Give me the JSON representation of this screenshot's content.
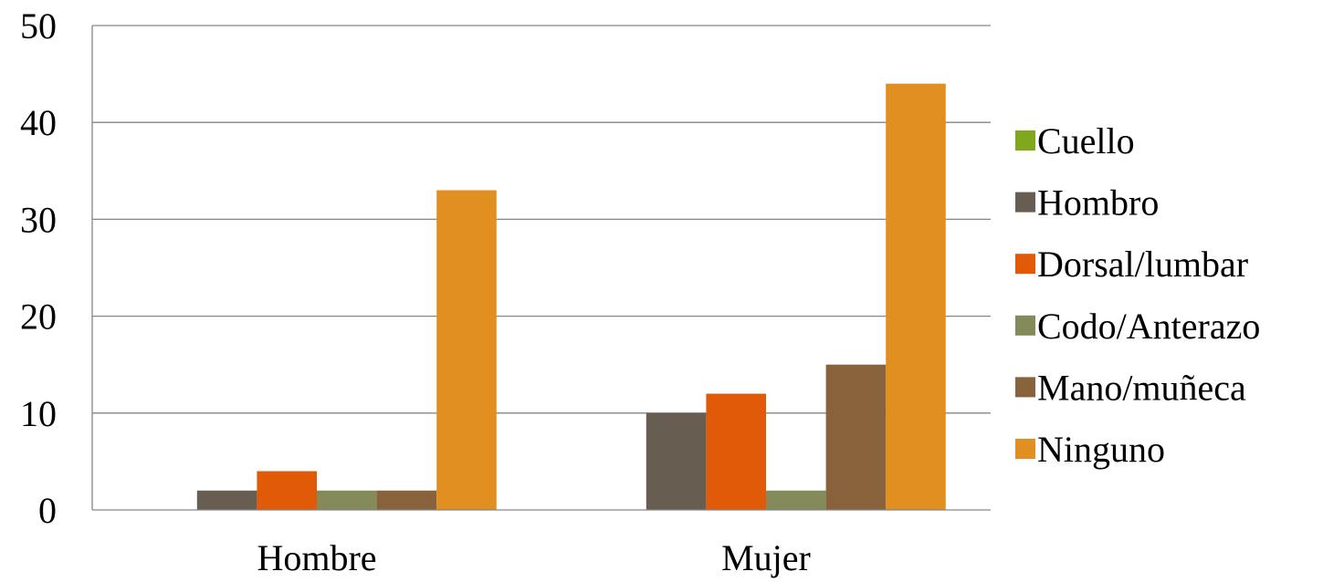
{
  "chart_data": {
    "type": "bar",
    "categories": [
      "Hombre",
      "Mujer"
    ],
    "series": [
      {
        "name": "Cuello",
        "color": "#7FA81E",
        "values": [
          0,
          0
        ]
      },
      {
        "name": "Hombro",
        "color": "#675E51",
        "values": [
          2,
          10
        ]
      },
      {
        "name": "Dorsal/lumbar",
        "color": "#E05A07",
        "values": [
          4,
          12
        ]
      },
      {
        "name": "Codo/Anterazo",
        "color": "#858A5B",
        "values": [
          2,
          2
        ]
      },
      {
        "name": "Mano/muñeca",
        "color": "#88623A",
        "values": [
          2,
          15
        ]
      },
      {
        "name": "Ninguno",
        "color": "#E18F21",
        "values": [
          33,
          44
        ]
      }
    ],
    "ylim": [
      0,
      50
    ],
    "yticks": [
      0,
      10,
      20,
      30,
      40,
      50
    ],
    "grid": true,
    "legend_position": "right"
  }
}
